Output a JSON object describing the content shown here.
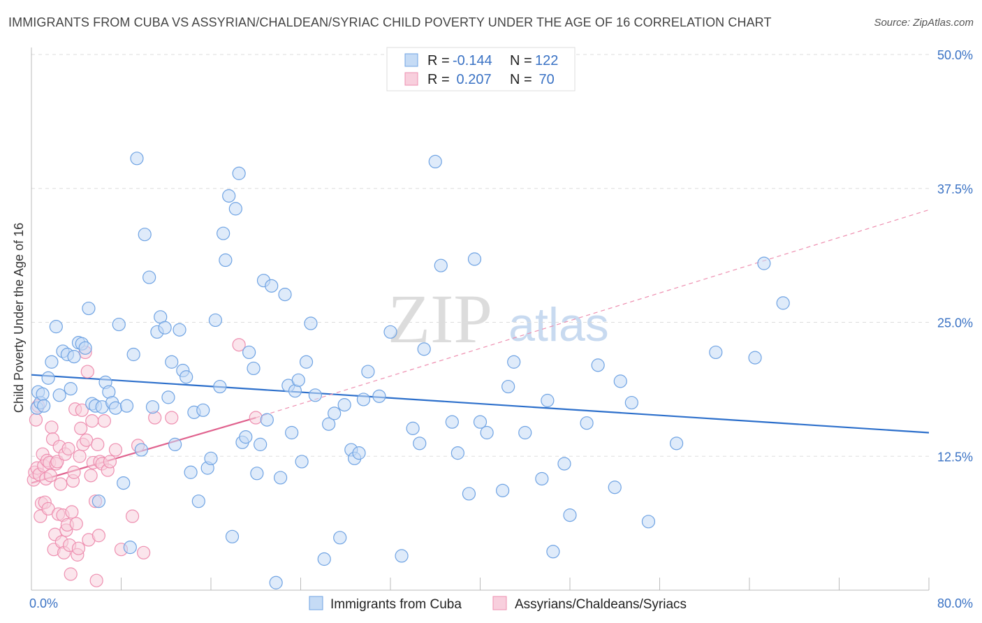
{
  "title": "IMMIGRANTS FROM CUBA VS ASSYRIAN/CHALDEAN/SYRIAC CHILD POVERTY UNDER THE AGE OF 16 CORRELATION CHART",
  "source": "Source: ZipAtlas.com",
  "watermark": {
    "zip": "ZIP",
    "atlas": "atlas"
  },
  "colors": {
    "blue": "#6fa3e3",
    "blue_fill": "#c5dbf5",
    "blue_line": "#2c6fcb",
    "pink": "#ee8fb0",
    "pink_fill": "#f8cfdd",
    "pink_line": "#e0628e",
    "axis_text": "#3a72c4",
    "grid": "#dddddd"
  },
  "legend": [
    {
      "r_label": "R =",
      "r_value": "-0.144",
      "n_label": "N =",
      "n_value": "122",
      "color": "blue"
    },
    {
      "r_label": "R =",
      "r_value": " 0.207",
      "n_label": "N =",
      "n_value": " 70",
      "color": "pink"
    }
  ],
  "bottom_legend": [
    "Immigrants from Cuba",
    "Assyrians/Chaldeans/Syriacs"
  ],
  "chart_data": {
    "type": "scatter",
    "title": "IMMIGRANTS FROM CUBA VS ASSYRIAN/CHALDEAN/SYRIAC CHILD POVERTY UNDER THE AGE OF 16 CORRELATION CHART",
    "xlabel": "",
    "ylabel": "Child Poverty Under the Age of 16",
    "xlim": [
      0,
      80
    ],
    "ylim": [
      0,
      50
    ],
    "x_tick_labels": [
      "0.0%",
      "80.0%"
    ],
    "y_ticks": [
      12.5,
      25.0,
      37.5,
      50.0
    ],
    "y_tick_labels": [
      "12.5%",
      "25.0%",
      "37.5%",
      "50.0%"
    ],
    "grid": true,
    "legend_position": "top-center",
    "series": [
      {
        "name": "Immigrants from Cuba",
        "color": "blue",
        "trend": {
          "x": [
            0,
            80
          ],
          "y": [
            20.1,
            14.7
          ],
          "style": "solid"
        },
        "points": [
          [
            0.5,
            17.0
          ],
          [
            0.6,
            18.5
          ],
          [
            0.8,
            17.5
          ],
          [
            1.0,
            18.3
          ],
          [
            1.1,
            17.2
          ],
          [
            1.5,
            19.8
          ],
          [
            1.8,
            21.3
          ],
          [
            2.2,
            24.6
          ],
          [
            2.5,
            18.2
          ],
          [
            2.8,
            22.3
          ],
          [
            3.2,
            22.0
          ],
          [
            3.5,
            18.8
          ],
          [
            3.8,
            21.8
          ],
          [
            4.2,
            23.1
          ],
          [
            4.5,
            23.0
          ],
          [
            4.8,
            22.6
          ],
          [
            5.1,
            26.3
          ],
          [
            5.4,
            17.4
          ],
          [
            5.7,
            17.2
          ],
          [
            6.0,
            8.3
          ],
          [
            6.3,
            17.1
          ],
          [
            6.6,
            19.4
          ],
          [
            6.9,
            18.5
          ],
          [
            7.2,
            17.5
          ],
          [
            7.5,
            17.0
          ],
          [
            7.8,
            24.8
          ],
          [
            8.2,
            10.0
          ],
          [
            8.5,
            17.2
          ],
          [
            8.8,
            4.0
          ],
          [
            9.1,
            22.0
          ],
          [
            9.4,
            40.3
          ],
          [
            9.8,
            13.1
          ],
          [
            10.1,
            33.2
          ],
          [
            10.5,
            29.2
          ],
          [
            10.8,
            17.1
          ],
          [
            11.2,
            24.1
          ],
          [
            11.5,
            25.5
          ],
          [
            11.9,
            24.5
          ],
          [
            12.2,
            18.0
          ],
          [
            12.5,
            21.3
          ],
          [
            12.8,
            13.6
          ],
          [
            13.2,
            24.3
          ],
          [
            13.5,
            20.5
          ],
          [
            13.8,
            19.9
          ],
          [
            14.2,
            11.0
          ],
          [
            14.5,
            16.6
          ],
          [
            14.9,
            8.3
          ],
          [
            15.3,
            16.8
          ],
          [
            15.7,
            11.4
          ],
          [
            16.0,
            12.3
          ],
          [
            16.4,
            25.2
          ],
          [
            16.8,
            19.0
          ],
          [
            17.1,
            33.3
          ],
          [
            17.3,
            30.8
          ],
          [
            17.6,
            36.8
          ],
          [
            17.9,
            5.0
          ],
          [
            18.2,
            35.6
          ],
          [
            18.5,
            38.9
          ],
          [
            18.8,
            13.8
          ],
          [
            19.1,
            14.3
          ],
          [
            19.4,
            22.2
          ],
          [
            19.8,
            20.7
          ],
          [
            20.1,
            10.9
          ],
          [
            20.4,
            13.6
          ],
          [
            20.7,
            28.9
          ],
          [
            21.0,
            15.9
          ],
          [
            21.4,
            28.4
          ],
          [
            21.8,
            0.7
          ],
          [
            22.2,
            10.5
          ],
          [
            22.6,
            27.6
          ],
          [
            22.9,
            19.1
          ],
          [
            23.2,
            14.7
          ],
          [
            23.5,
            18.6
          ],
          [
            23.8,
            19.6
          ],
          [
            24.1,
            12.0
          ],
          [
            24.5,
            21.3
          ],
          [
            24.9,
            24.9
          ],
          [
            25.3,
            18.2
          ],
          [
            26.1,
            2.9
          ],
          [
            26.5,
            15.5
          ],
          [
            27.0,
            16.5
          ],
          [
            27.5,
            4.9
          ],
          [
            27.9,
            17.3
          ],
          [
            28.5,
            13.1
          ],
          [
            28.8,
            12.3
          ],
          [
            29.2,
            12.8
          ],
          [
            29.6,
            17.8
          ],
          [
            30.0,
            20.4
          ],
          [
            31.0,
            18.1
          ],
          [
            32.0,
            24.1
          ],
          [
            33.0,
            3.2
          ],
          [
            34.0,
            15.1
          ],
          [
            34.6,
            13.7
          ],
          [
            35.0,
            22.5
          ],
          [
            36.0,
            40.0
          ],
          [
            36.5,
            30.3
          ],
          [
            37.5,
            15.7
          ],
          [
            38.0,
            12.8
          ],
          [
            39.0,
            9.0
          ],
          [
            39.5,
            30.9
          ],
          [
            40.0,
            15.7
          ],
          [
            40.6,
            14.7
          ],
          [
            42.0,
            9.3
          ],
          [
            42.5,
            19.0
          ],
          [
            43.0,
            21.3
          ],
          [
            44.0,
            14.7
          ],
          [
            45.5,
            10.4
          ],
          [
            46.0,
            17.7
          ],
          [
            46.5,
            3.6
          ],
          [
            47.5,
            11.8
          ],
          [
            48.0,
            7.0
          ],
          [
            49.5,
            15.6
          ],
          [
            50.5,
            21.0
          ],
          [
            52.0,
            9.6
          ],
          [
            52.5,
            19.5
          ],
          [
            53.5,
            17.5
          ],
          [
            55.0,
            6.4
          ],
          [
            57.5,
            13.7
          ],
          [
            61.0,
            22.2
          ],
          [
            64.5,
            21.7
          ],
          [
            65.3,
            30.5
          ],
          [
            67.0,
            26.8
          ]
        ]
      },
      {
        "name": "Assyrians/Chaldeans/Syriacs",
        "color": "pink",
        "trend": {
          "x": [
            0,
            20
          ],
          "y": [
            10.0,
            16.1
          ],
          "style": "solid",
          "extended": {
            "x": [
              20,
              80
            ],
            "y": [
              16.1,
              35.5
            ],
            "style": "dashed"
          }
        },
        "points": [
          [
            0.2,
            10.3
          ],
          [
            0.3,
            11.0
          ],
          [
            0.4,
            15.9
          ],
          [
            0.5,
            11.4
          ],
          [
            0.6,
            17.2
          ],
          [
            0.7,
            10.8
          ],
          [
            0.8,
            6.9
          ],
          [
            0.9,
            8.1
          ],
          [
            1.0,
            12.7
          ],
          [
            1.1,
            11.6
          ],
          [
            1.2,
            8.2
          ],
          [
            1.3,
            10.4
          ],
          [
            1.4,
            12.1
          ],
          [
            1.5,
            7.6
          ],
          [
            1.6,
            11.9
          ],
          [
            1.7,
            10.7
          ],
          [
            1.8,
            15.2
          ],
          [
            1.9,
            14.1
          ],
          [
            2.0,
            3.8
          ],
          [
            2.1,
            5.2
          ],
          [
            2.2,
            11.8
          ],
          [
            2.3,
            12.0
          ],
          [
            2.4,
            7.1
          ],
          [
            2.5,
            13.4
          ],
          [
            2.6,
            9.9
          ],
          [
            2.7,
            4.5
          ],
          [
            2.8,
            7.0
          ],
          [
            2.9,
            3.5
          ],
          [
            3.0,
            12.7
          ],
          [
            3.1,
            5.6
          ],
          [
            3.2,
            6.1
          ],
          [
            3.3,
            13.2
          ],
          [
            3.4,
            4.2
          ],
          [
            3.5,
            1.5
          ],
          [
            3.6,
            7.3
          ],
          [
            3.7,
            10.2
          ],
          [
            3.8,
            11.0
          ],
          [
            3.9,
            16.9
          ],
          [
            4.0,
            6.2
          ],
          [
            4.1,
            3.3
          ],
          [
            4.2,
            3.9
          ],
          [
            4.3,
            12.5
          ],
          [
            4.4,
            15.1
          ],
          [
            4.5,
            16.8
          ],
          [
            4.6,
            13.6
          ],
          [
            4.8,
            22.2
          ],
          [
            4.9,
            14.0
          ],
          [
            5.0,
            20.4
          ],
          [
            5.1,
            4.7
          ],
          [
            5.3,
            10.7
          ],
          [
            5.4,
            15.8
          ],
          [
            5.5,
            11.9
          ],
          [
            5.7,
            8.3
          ],
          [
            5.8,
            0.9
          ],
          [
            5.9,
            13.6
          ],
          [
            6.0,
            5.1
          ],
          [
            6.1,
            12.0
          ],
          [
            6.3,
            11.8
          ],
          [
            6.5,
            15.8
          ],
          [
            6.8,
            11.2
          ],
          [
            7.0,
            12.0
          ],
          [
            7.5,
            13.1
          ],
          [
            8.0,
            3.8
          ],
          [
            9.0,
            6.9
          ],
          [
            9.5,
            13.5
          ],
          [
            10.0,
            3.5
          ],
          [
            11.0,
            16.1
          ],
          [
            12.5,
            16.1
          ],
          [
            18.5,
            22.9
          ],
          [
            20.0,
            16.1
          ]
        ]
      }
    ]
  }
}
